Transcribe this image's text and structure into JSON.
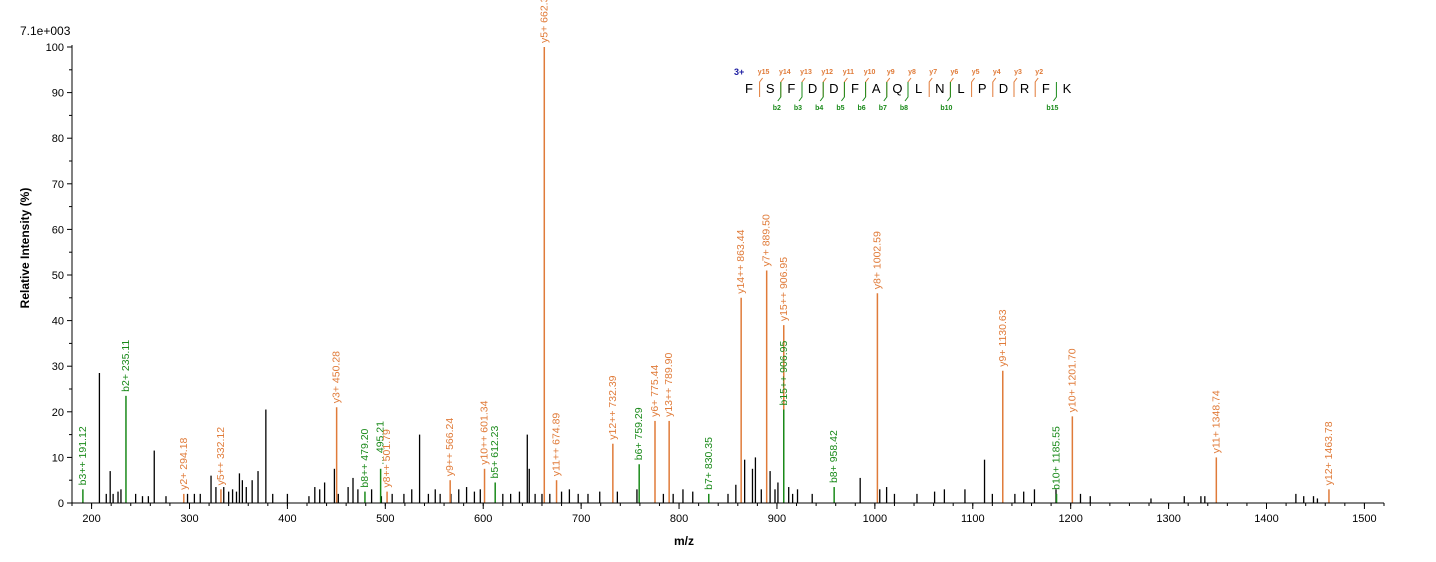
{
  "colors": {
    "y_ion": "#e07b39",
    "b_ion": "#1a8a1a",
    "other": "#000000",
    "charge": "#1a1aa0"
  },
  "chart_data": {
    "type": "bar",
    "max_intensity_label": "7.1e+003",
    "xlabel": "m/z",
    "ylabel": "Relative   Intensity (%)",
    "xlim": [
      180,
      1520
    ],
    "ylim": [
      0,
      100
    ],
    "x_ticks": [
      200,
      300,
      400,
      500,
      600,
      700,
      800,
      900,
      1000,
      1100,
      1200,
      1300,
      1400,
      1500
    ],
    "y_ticks": [
      0,
      10,
      20,
      30,
      40,
      50,
      60,
      70,
      80,
      90,
      100
    ],
    "annotated_peaks": [
      {
        "mz": 191.12,
        "intensity": 3,
        "label": "b3++ 191.12",
        "type": "b"
      },
      {
        "mz": 235.11,
        "intensity": 23.5,
        "label": "b2+ 235.11",
        "type": "b"
      },
      {
        "mz": 294.18,
        "intensity": 2,
        "label": "y2+ 294.18",
        "type": "y"
      },
      {
        "mz": 332.12,
        "intensity": 3,
        "label": "y5++ 332.12",
        "type": "y"
      },
      {
        "mz": 450.28,
        "intensity": 21,
        "label": "y3+ 450.28",
        "type": "y"
      },
      {
        "mz": 479.2,
        "intensity": 2.5,
        "label": "b8++ 479.20",
        "type": "b"
      },
      {
        "mz": 495.21,
        "intensity": 7.5,
        "label": "... 495.21",
        "type": "b"
      },
      {
        "mz": 501.79,
        "intensity": 2.5,
        "label": "y8++ 501.79",
        "type": "y"
      },
      {
        "mz": 566.24,
        "intensity": 5,
        "label": "y9++ 566.24",
        "type": "y"
      },
      {
        "mz": 601.34,
        "intensity": 7.5,
        "label": "y10++ 601.34",
        "type": "y"
      },
      {
        "mz": 612.23,
        "intensity": 4.5,
        "label": "b5+ 612.23",
        "type": "b"
      },
      {
        "mz": 662.37,
        "intensity": 100,
        "label": "y5+ 662.37",
        "type": "y"
      },
      {
        "mz": 674.89,
        "intensity": 5,
        "label": "y11++ 674.89",
        "type": "y"
      },
      {
        "mz": 732.39,
        "intensity": 13,
        "label": "y12++ 732.39",
        "type": "y"
      },
      {
        "mz": 759.29,
        "intensity": 8.5,
        "label": "b6+ 759.29",
        "type": "b"
      },
      {
        "mz": 775.44,
        "intensity": 18,
        "label": "y6+ 775.44",
        "type": "y"
      },
      {
        "mz": 789.9,
        "intensity": 18,
        "label": "y13++ 789.90",
        "type": "y"
      },
      {
        "mz": 830.35,
        "intensity": 2,
        "label": "b7+ 830.35",
        "type": "b"
      },
      {
        "mz": 863.44,
        "intensity": 45,
        "label": "y14++ 863.44",
        "type": "y"
      },
      {
        "mz": 889.5,
        "intensity": 51,
        "label": "y7+ 889.50",
        "type": "y"
      },
      {
        "mz": 906.95,
        "intensity": 39,
        "label": "y15++ 906.95",
        "type": "y"
      },
      {
        "mz": 906.95,
        "intensity": 20.5,
        "label": "b15++ 906.95",
        "type": "b"
      },
      {
        "mz": 958.42,
        "intensity": 3.5,
        "label": "b8+ 958.42",
        "type": "b"
      },
      {
        "mz": 1002.59,
        "intensity": 46,
        "label": "y8+ 1002.59",
        "type": "y"
      },
      {
        "mz": 1130.63,
        "intensity": 29,
        "label": "y9+ 1130.63",
        "type": "y"
      },
      {
        "mz": 1185.55,
        "intensity": 2,
        "label": "b10+ 1185.55",
        "type": "b"
      },
      {
        "mz": 1201.7,
        "intensity": 19,
        "label": "y10+ 1201.70",
        "type": "y"
      },
      {
        "mz": 1348.74,
        "intensity": 10,
        "label": "y11+ 1348.74",
        "type": "y"
      },
      {
        "mz": 1463.78,
        "intensity": 3,
        "label": "y12+ 1463.78",
        "type": "y"
      }
    ],
    "unannotated_peaks": [
      [
        208,
        28.5
      ],
      [
        215,
        2
      ],
      [
        219,
        7
      ],
      [
        222,
        2
      ],
      [
        227,
        2.5
      ],
      [
        230,
        3
      ],
      [
        245,
        2
      ],
      [
        252,
        1.5
      ],
      [
        258,
        1.5
      ],
      [
        264,
        11.5
      ],
      [
        276,
        1.5
      ],
      [
        298,
        2
      ],
      [
        305,
        2
      ],
      [
        311,
        2
      ],
      [
        322,
        6
      ],
      [
        327,
        3.5
      ],
      [
        335,
        3.5
      ],
      [
        340,
        2.5
      ],
      [
        344,
        3
      ],
      [
        348,
        2.5
      ],
      [
        351,
        6.5
      ],
      [
        354,
        5
      ],
      [
        358,
        3.5
      ],
      [
        364,
        5
      ],
      [
        370,
        7
      ],
      [
        378,
        20.5
      ],
      [
        385,
        2
      ],
      [
        400,
        2
      ],
      [
        422,
        1.5
      ],
      [
        428,
        3.5
      ],
      [
        433,
        3
      ],
      [
        438,
        4.5
      ],
      [
        448,
        7.5
      ],
      [
        452,
        2
      ],
      [
        462,
        3.5
      ],
      [
        467,
        5.5
      ],
      [
        472,
        3
      ],
      [
        486,
        3
      ],
      [
        496,
        1.5
      ],
      [
        507,
        2
      ],
      [
        519,
        2
      ],
      [
        527,
        3
      ],
      [
        535,
        15
      ],
      [
        544,
        2
      ],
      [
        551,
        3
      ],
      [
        556,
        2
      ],
      [
        567,
        2
      ],
      [
        575,
        3
      ],
      [
        583,
        3.5
      ],
      [
        591,
        2.5
      ],
      [
        597,
        3
      ],
      [
        620,
        2
      ],
      [
        628,
        2
      ],
      [
        637,
        2.5
      ],
      [
        645,
        15
      ],
      [
        647,
        7.5
      ],
      [
        653,
        2
      ],
      [
        660,
        2
      ],
      [
        668,
        2
      ],
      [
        680,
        2.5
      ],
      [
        688,
        3
      ],
      [
        697,
        2
      ],
      [
        707,
        2
      ],
      [
        719,
        2.5
      ],
      [
        737,
        2.5
      ],
      [
        757,
        3
      ],
      [
        784,
        2
      ],
      [
        794,
        2
      ],
      [
        804,
        3
      ],
      [
        814,
        2.5
      ],
      [
        850,
        2
      ],
      [
        858,
        4
      ],
      [
        867,
        9.5
      ],
      [
        875,
        7.5
      ],
      [
        878,
        10
      ],
      [
        884,
        3
      ],
      [
        893,
        7
      ],
      [
        898,
        3
      ],
      [
        901,
        4.5
      ],
      [
        912,
        3.5
      ],
      [
        916,
        2
      ],
      [
        921,
        3
      ],
      [
        936,
        2
      ],
      [
        985,
        5.5
      ],
      [
        1005,
        3
      ],
      [
        1012,
        3.5
      ],
      [
        1020,
        2
      ],
      [
        1043,
        2
      ],
      [
        1061,
        2.5
      ],
      [
        1071,
        3
      ],
      [
        1092,
        3
      ],
      [
        1112,
        9.5
      ],
      [
        1120,
        2
      ],
      [
        1143,
        2
      ],
      [
        1152,
        2.5
      ],
      [
        1163,
        3
      ],
      [
        1185,
        3
      ],
      [
        1210,
        2
      ],
      [
        1220,
        1.5
      ],
      [
        1282,
        1
      ],
      [
        1316,
        1.5
      ],
      [
        1333,
        1.5
      ],
      [
        1337,
        1.5
      ],
      [
        1430,
        2
      ],
      [
        1438,
        1.5
      ],
      [
        1448,
        1.5
      ],
      [
        1452,
        1
      ]
    ],
    "sequence_annotation": {
      "charge": "3+",
      "residues": [
        "F",
        "S",
        "F",
        "D",
        "D",
        "F",
        "A",
        "Q",
        "L",
        "N",
        "L",
        "P",
        "D",
        "R",
        "F",
        "K"
      ],
      "y_ions": [
        {
          "after": 1,
          "label": "y15"
        },
        {
          "after": 2,
          "label": "y14"
        },
        {
          "after": 3,
          "label": "y13"
        },
        {
          "after": 4,
          "label": "y12"
        },
        {
          "after": 5,
          "label": "y11"
        },
        {
          "after": 6,
          "label": "y10"
        },
        {
          "after": 7,
          "label": "y9"
        },
        {
          "after": 8,
          "label": "y8"
        },
        {
          "after": 9,
          "label": "y7"
        },
        {
          "after": 10,
          "label": "y6"
        },
        {
          "after": 11,
          "label": "y5"
        },
        {
          "after": 12,
          "label": "y4"
        },
        {
          "after": 13,
          "label": "y3"
        },
        {
          "after": 14,
          "label": "y2"
        }
      ],
      "b_ions": [
        {
          "after": 2,
          "label": "b2"
        },
        {
          "after": 3,
          "label": "b3"
        },
        {
          "after": 4,
          "label": "b4"
        },
        {
          "after": 5,
          "label": "b5"
        },
        {
          "after": 6,
          "label": "b6"
        },
        {
          "after": 7,
          "label": "b7"
        },
        {
          "after": 8,
          "label": "b8"
        },
        {
          "after": 10,
          "label": "b10"
        },
        {
          "after": 15,
          "label": "b15"
        }
      ]
    }
  }
}
